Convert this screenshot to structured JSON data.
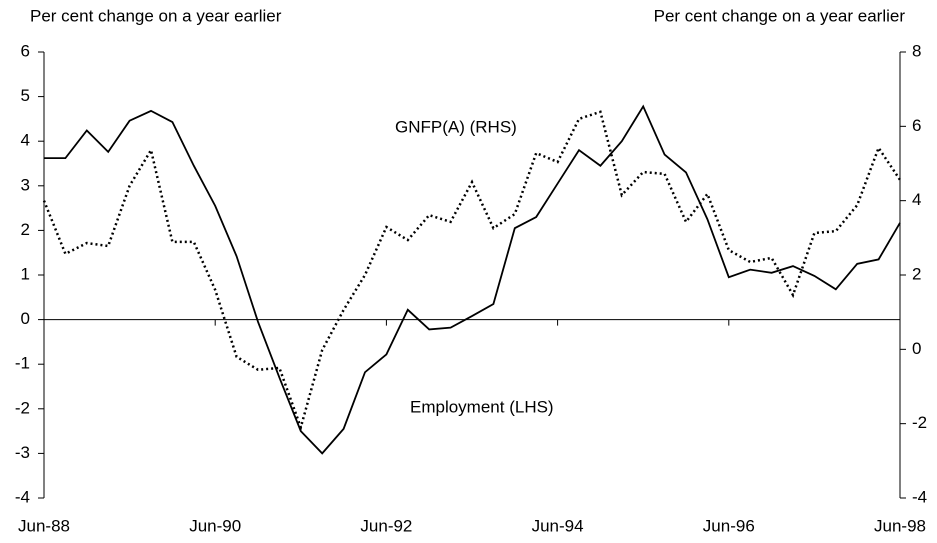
{
  "chart_data": {
    "type": "line",
    "y_label": "Per cent change on a year earlier",
    "y2_label": "Per cent change on a year earlier",
    "annotations": [
      "GNFP(A) (RHS)",
      "Employment (LHS)"
    ],
    "categories": [
      "Jun-88",
      null,
      null,
      null,
      null,
      null,
      null,
      null,
      "Jun-90",
      null,
      null,
      null,
      null,
      null,
      null,
      null,
      "Jun-92",
      null,
      null,
      null,
      null,
      null,
      null,
      null,
      "Jun-94",
      null,
      null,
      null,
      null,
      null,
      null,
      null,
      "Jun-96",
      null,
      null,
      null,
      null,
      null,
      null,
      null,
      "Jun-98"
    ],
    "series": [
      {
        "name": "Employment (LHS)",
        "color": "#000000",
        "style": "solid",
        "axis": "y",
        "values": [
          3.62,
          3.62,
          4.24,
          3.76,
          4.46,
          4.68,
          4.43,
          3.45,
          2.55,
          1.42,
          -0.05,
          -1.3,
          -2.5,
          -3.0,
          -2.45,
          -1.18,
          -0.78,
          0.22,
          -0.22,
          -0.18,
          0.08,
          0.35,
          2.05,
          2.3,
          3.05,
          3.8,
          3.45,
          4.0,
          4.78,
          3.7,
          3.3,
          2.25,
          0.95,
          1.12,
          1.05,
          1.2,
          0.98,
          0.68,
          1.25,
          1.35,
          2.17
        ]
      },
      {
        "name": "GNFP(A) (RHS)",
        "color": "#000000",
        "style": "dotted",
        "axis": "y2",
        "values": [
          4.0,
          2.57,
          2.86,
          2.78,
          4.4,
          5.36,
          2.89,
          2.89,
          1.6,
          -0.2,
          -0.55,
          -0.5,
          -2.1,
          -0.02,
          1.06,
          2.0,
          3.29,
          2.94,
          3.61,
          3.43,
          4.5,
          3.26,
          3.64,
          5.28,
          5.04,
          6.2,
          6.39,
          4.15,
          4.77,
          4.72,
          3.43,
          4.18,
          2.67,
          2.35,
          2.46,
          1.46,
          3.13,
          3.18,
          3.88,
          5.42,
          4.56
        ]
      }
    ],
    "ylim": [
      -4,
      6
    ],
    "yticks": [
      -4,
      -3,
      -2,
      -1,
      0,
      1,
      2,
      3,
      4,
      5,
      6
    ],
    "y2lim": [
      -4,
      8
    ],
    "y2ticks": [
      -4,
      -2,
      0,
      2,
      4,
      6,
      8
    ]
  }
}
